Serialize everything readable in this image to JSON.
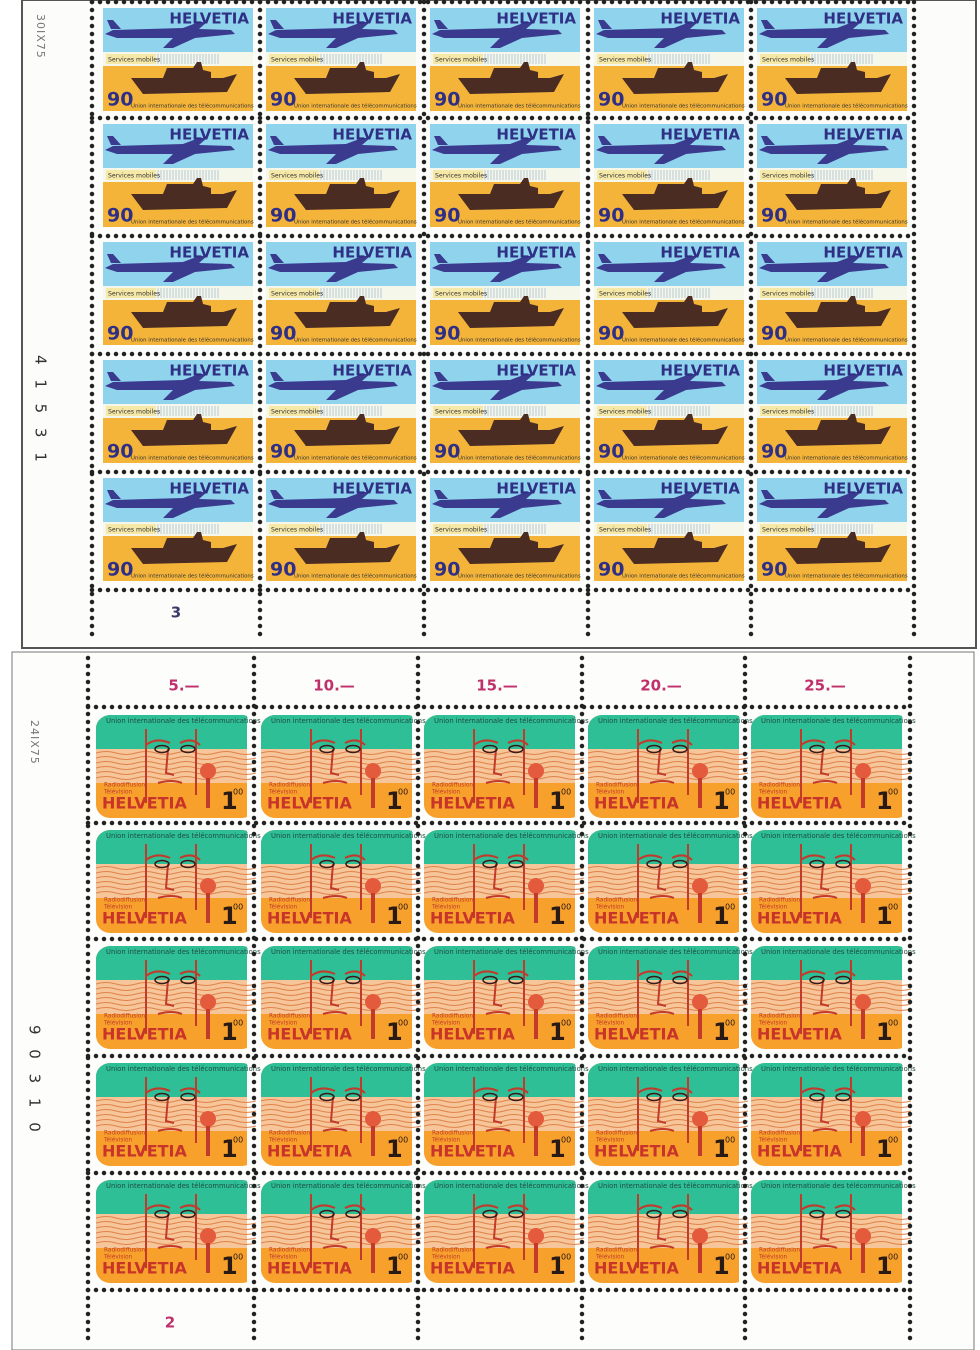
{
  "sheets": [
    {
      "date_mark": "30IX75",
      "control_number": "4 1 5 3 1",
      "sheet_number": "3",
      "stamp": {
        "country": "HELVETIA",
        "caption": "Services mobiles",
        "issuer": "Union internationale des télécommunications",
        "value": "90"
      }
    },
    {
      "date_mark": "24IX75",
      "control_number": "9 0 3 1 0",
      "sheet_number": "2",
      "column_totals": [
        "5.—",
        "10.—",
        "15.—",
        "20.—",
        "25.—"
      ],
      "stamp": {
        "issuer": "Union internationale des télécommunications",
        "caption_1": "Radiodiffusion",
        "caption_2": "Télévision",
        "country": "HELVETIA",
        "value": "1",
        "value_cents": "00"
      }
    }
  ]
}
